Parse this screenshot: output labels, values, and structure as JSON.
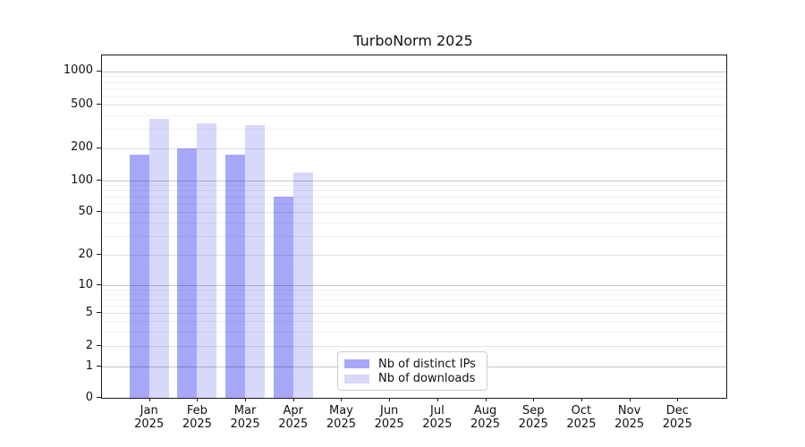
{
  "title": "TurboNorm 2025",
  "chart_data": {
    "type": "bar",
    "title": "TurboNorm 2025",
    "categories": [
      "Jan",
      "Feb",
      "Mar",
      "Apr",
      "May",
      "Jun",
      "Jul",
      "Aug",
      "Sep",
      "Oct",
      "Nov",
      "Dec"
    ],
    "x_tick_year": "2025",
    "series": [
      {
        "name": "Nb of distinct IPs",
        "color": "#a7a7fa",
        "values": [
          172,
          198,
          174,
          70,
          null,
          null,
          null,
          null,
          null,
          null,
          null,
          null
        ]
      },
      {
        "name": "Nb of downloads",
        "color": "#d8d8fa",
        "values": [
          371,
          336,
          322,
          118,
          null,
          null,
          null,
          null,
          null,
          null,
          null,
          null
        ]
      }
    ],
    "yticks": [
      0,
      1,
      2,
      5,
      10,
      20,
      50,
      100,
      200,
      500,
      1000
    ],
    "yscale": "symlog",
    "ylim": [
      0,
      1400
    ],
    "grid": true,
    "legend_position": "lower-center"
  },
  "legend": {
    "items": [
      {
        "label": "Nb of distinct IPs",
        "color": "#a7a7fa"
      },
      {
        "label": "Nb of downloads",
        "color": "#d8d8fa"
      }
    ]
  }
}
